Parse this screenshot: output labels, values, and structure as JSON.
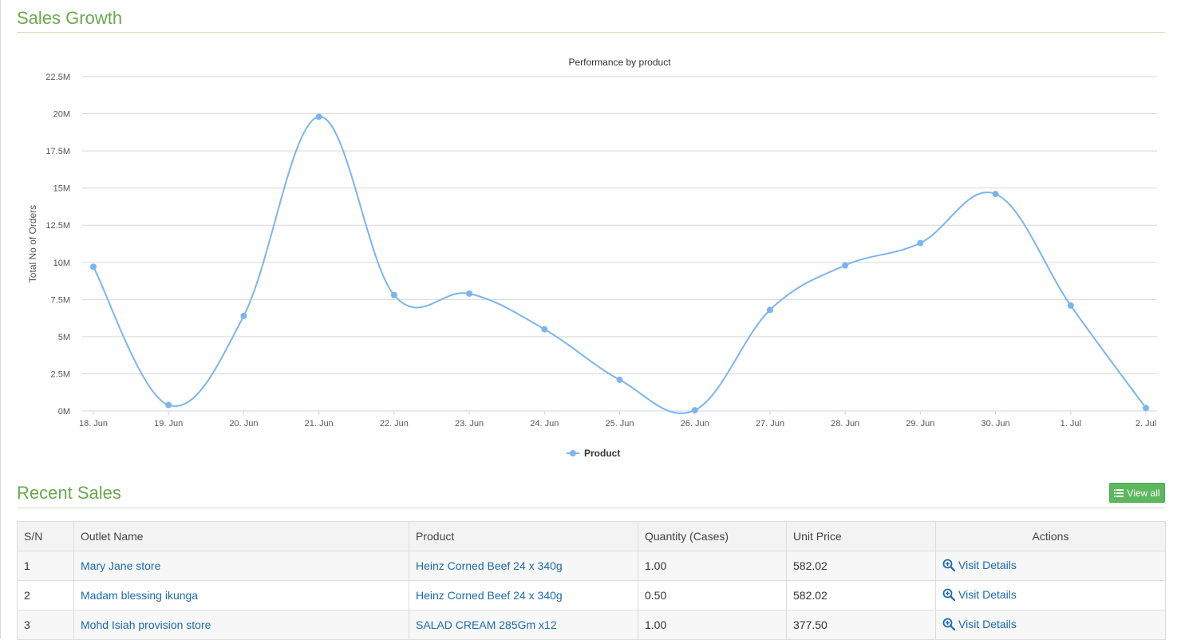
{
  "sales_growth": {
    "title": "Sales Growth"
  },
  "chart_data": {
    "type": "line",
    "title": "Performance by product",
    "ylabel": "Total No of Orders",
    "xlabel": "",
    "categories": [
      "18. Jun",
      "19. Jun",
      "20. Jun",
      "21. Jun",
      "22. Jun",
      "23. Jun",
      "24. Jun",
      "25. Jun",
      "26. Jun",
      "27. Jun",
      "28. Jun",
      "29. Jun",
      "30. Jun",
      "1. Jul",
      "2. Jul"
    ],
    "series": [
      {
        "name": "Product",
        "color": "#7cb5ec",
        "values": [
          9.7,
          0.4,
          6.4,
          19.8,
          7.8,
          7.9,
          5.5,
          2.1,
          0.05,
          6.8,
          9.8,
          11.3,
          14.6,
          7.1,
          0.2
        ]
      }
    ],
    "value_unit": "M",
    "ylim": [
      0,
      22.5
    ],
    "yticks": [
      0,
      2.5,
      5,
      7.5,
      10,
      12.5,
      15,
      17.5,
      20,
      22.5
    ],
    "ytick_labels": [
      "0M",
      "2.5M",
      "5M",
      "7.5M",
      "10M",
      "12.5M",
      "15M",
      "17.5M",
      "20M",
      "22.5M"
    ],
    "grid": true,
    "legend": "bottom-center"
  },
  "recent_sales": {
    "title": "Recent Sales",
    "view_all_label": "View all",
    "columns": [
      "S/N",
      "Outlet Name",
      "Product",
      "Quantity (Cases)",
      "Unit Price",
      "Actions"
    ],
    "action_label": "Visit Details",
    "rows": [
      {
        "sn": "1",
        "outlet": "Mary Jane store",
        "product": "Heinz Corned Beef 24 x 340g",
        "qty": "1.00",
        "price": "582.02"
      },
      {
        "sn": "2",
        "outlet": "Madam blessing ikunga",
        "product": "Heinz Corned Beef 24 x 340g",
        "qty": "0.50",
        "price": "582.02"
      },
      {
        "sn": "3",
        "outlet": "Mohd Isiah provision store",
        "product": "SALAD CREAM 285Gm x12",
        "qty": "1.00",
        "price": "377.50"
      }
    ]
  }
}
